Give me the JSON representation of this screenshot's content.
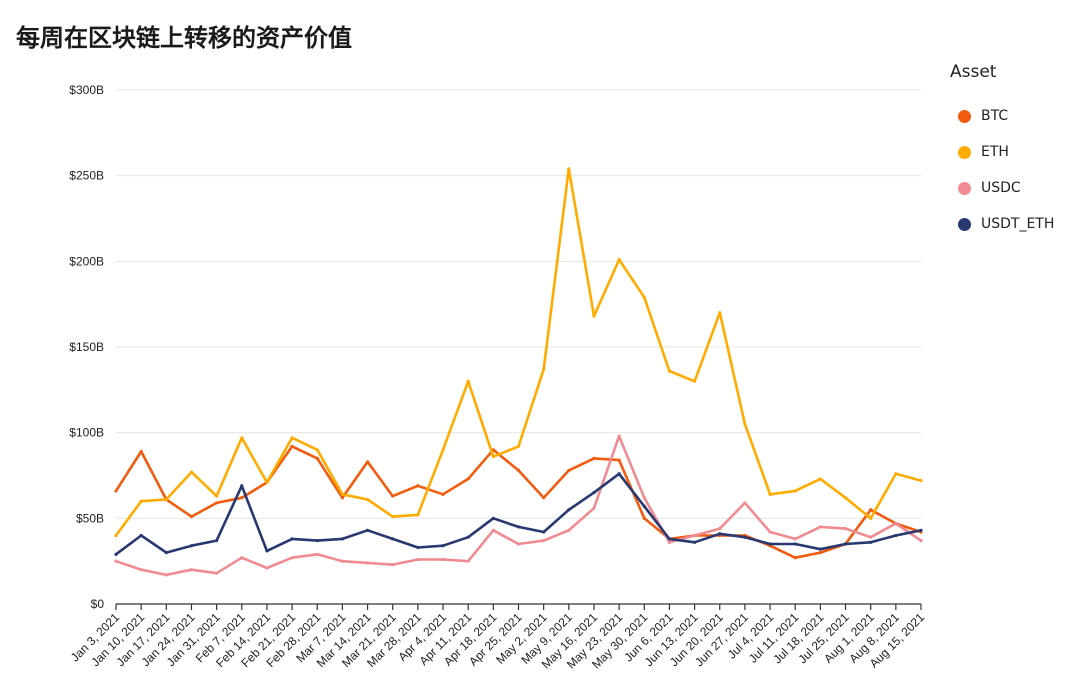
{
  "chart_data": {
    "type": "line",
    "title": "每周在区块链上转移的资产价值",
    "xlabel": "",
    "ylabel": "",
    "ylim": [
      0,
      300
    ],
    "y_unit": "B",
    "y_ticks": [
      "$0",
      "$50B",
      "$100B",
      "$150B",
      "$200B",
      "$250B",
      "$300B"
    ],
    "legend_title": "Asset",
    "legend_position": "right",
    "grid": true,
    "categories": [
      "Jan 3, 2021",
      "Jan 10, 2021",
      "Jan 17, 2021",
      "Jan 24, 2021",
      "Jan 31, 2021",
      "Feb 7, 2021",
      "Feb 14, 2021",
      "Feb 21, 2021",
      "Feb 28, 2021",
      "Mar 7, 2021",
      "Mar 14, 2021",
      "Mar 21, 2021",
      "Mar 28, 2021",
      "Apr 4, 2021",
      "Apr 11, 2021",
      "Apr 18, 2021",
      "Apr 25, 2021",
      "May 2, 2021",
      "May 9, 2021",
      "May 16, 2021",
      "May 23, 2021",
      "May 30, 2021",
      "Jun 6, 2021",
      "Jun 13, 2021",
      "Jun 20, 2021",
      "Jun 27, 2021",
      "Jul 4, 2021",
      "Jul 11, 2021",
      "Jul 18, 2021",
      "Jul 25, 2021",
      "Aug 1, 2021",
      "Aug 8, 2021",
      "Aug 15, 2021"
    ],
    "series": [
      {
        "name": "BTC",
        "color": "#f25c0f",
        "values": [
          66,
          89,
          61,
          51,
          59,
          62,
          71,
          92,
          85,
          62,
          83,
          63,
          69,
          64,
          73,
          90,
          78,
          62,
          78,
          85,
          84,
          50,
          38,
          40,
          40,
          40,
          34,
          27,
          30,
          35,
          55,
          47,
          42
        ]
      },
      {
        "name": "ETH",
        "color": "#ffab00",
        "values": [
          40,
          60,
          61,
          77,
          63,
          97,
          71,
          97,
          90,
          64,
          61,
          51,
          52,
          90,
          130,
          86,
          92,
          137,
          254,
          168,
          201,
          179,
          136,
          130,
          170,
          105,
          64,
          66,
          73,
          62,
          50,
          76,
          72
        ]
      },
      {
        "name": "USDC",
        "color": "#f08b91",
        "values": [
          25,
          20,
          17,
          20,
          18,
          27,
          21,
          27,
          29,
          25,
          24,
          23,
          26,
          26,
          25,
          43,
          35,
          37,
          43,
          56,
          98,
          62,
          36,
          40,
          44,
          59,
          42,
          38,
          45,
          44,
          39,
          47,
          37
        ]
      },
      {
        "name": "USDT_ETH",
        "color": "#283870",
        "values": [
          29,
          40,
          30,
          34,
          37,
          69,
          31,
          38,
          37,
          38,
          43,
          38,
          33,
          34,
          39,
          50,
          45,
          42,
          55,
          65,
          76,
          57,
          38,
          36,
          41,
          39,
          35,
          35,
          32,
          35,
          36,
          40,
          43
        ]
      }
    ]
  }
}
